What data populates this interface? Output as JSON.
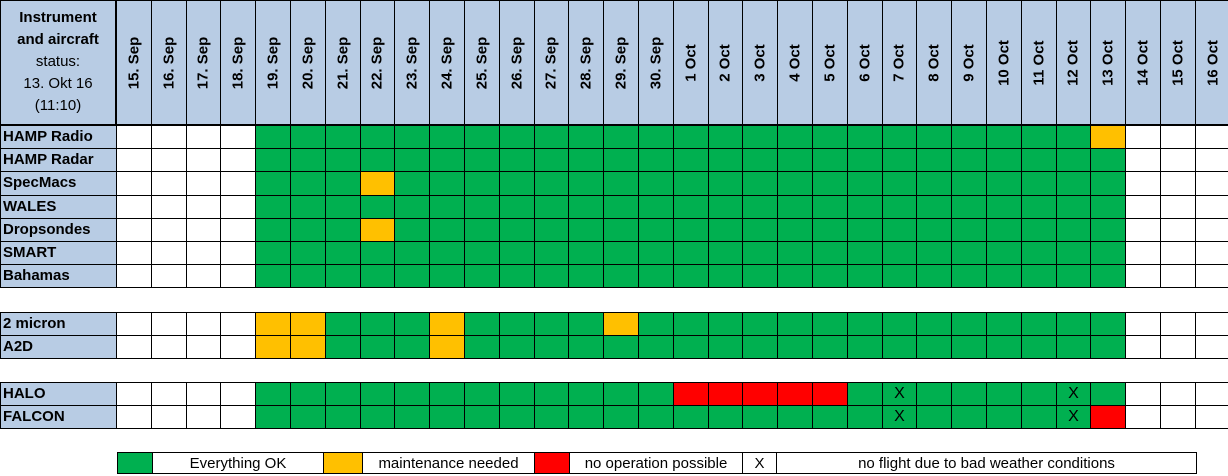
{
  "header": {
    "title_line1": "Instrument",
    "title_line2": "and aircraft",
    "title_line3": "status:",
    "timestamp_line1": "13. Okt 16",
    "timestamp_line2": "(11:10)"
  },
  "dates": [
    "15. Sep",
    "16. Sep",
    "17. Sep",
    "18. Sep",
    "19. Sep",
    "20. Sep",
    "21. Sep",
    "22. Sep",
    "23. Sep",
    "24. Sep",
    "25. Sep",
    "26. Sep",
    "27. Sep",
    "28. Sep",
    "29. Sep",
    "30. Sep",
    "1 Oct",
    "2 Oct",
    "3 Oct",
    "4 Oct",
    "5 Oct",
    "6 Oct",
    "7 Oct",
    "8 Oct",
    "9 Oct",
    "10 Oct",
    "11 Oct",
    "12 Oct",
    "13 Oct",
    "14 Oct",
    "15 Oct",
    "16 Oct"
  ],
  "groups": [
    {
      "rows": [
        {
          "name": "HAMP Radio",
          "status": "----GGGGGGGGGGGGGGGGGGGGGGGGMW---"
        },
        {
          "name": "HAMP Radar",
          "status": "----GGGGGGGGGGGGGGGGGGGGGGGGGW---"
        },
        {
          "name": "SpecMacs",
          "status": "----GGGMGGGGGGGGGGGGGGGGGGGGGW---"
        },
        {
          "name": "WALES",
          "status": "----GGGGGGGGGGGGGGGGGGGGGGGGGW---"
        },
        {
          "name": "Dropsondes",
          "status": "----GGGMGGGGGGGGGGGGGGGGGGGGGW---"
        },
        {
          "name": "SMART",
          "status": "----GGGGGGGGGGGGGGGGGGGGGGGGGW---"
        },
        {
          "name": "Bahamas",
          "status": "----GGGGGGGGGGGGGGGGGGGGGGGGGW---"
        }
      ]
    },
    {
      "rows": [
        {
          "name": "2 micron",
          "status": "----MMGGGMGGGGMGGGGGGGGGGGGGGW---"
        },
        {
          "name": "A2D",
          "status": "----MMGGGMGGGGGGGGGGGGGGGGGGGW---"
        }
      ]
    },
    {
      "rows": [
        {
          "name": "HALO",
          "status": "----GGGGGGGGGGGGRRRRRGXGGGGXGW---"
        },
        {
          "name": "FALCON",
          "status": "----GGGGGGGGGGGGGGGGGGXGGGGXRW---"
        }
      ]
    }
  ],
  "mark_text": "X",
  "legend": {
    "ok_label": "Everything OK",
    "maint_label": "maintenance needed",
    "noop_label": "no operation possible",
    "x_symbol": "X",
    "weather_label": "no flight due to bad weather conditions"
  },
  "colors": {
    "ok": "#00b050",
    "maintenance": "#ffc000",
    "no_operation": "#ff0000",
    "header": "#b8cce4"
  }
}
